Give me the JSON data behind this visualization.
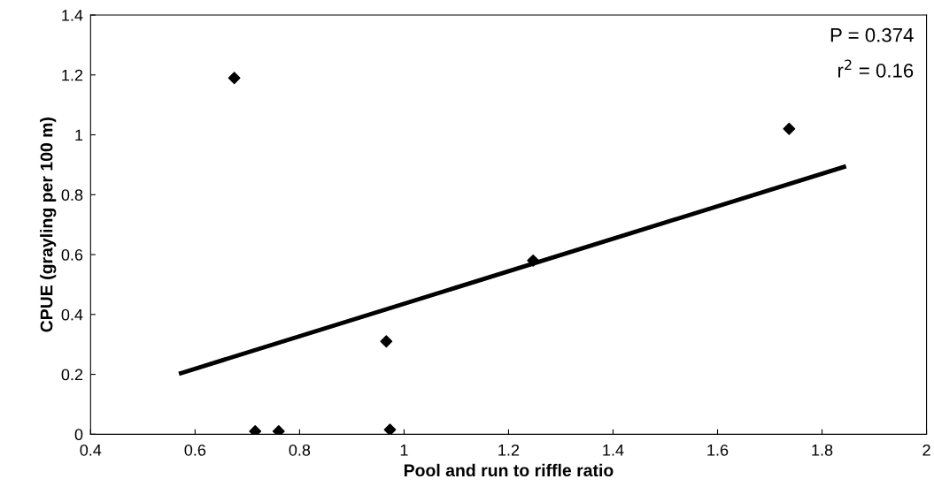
{
  "chart_data": {
    "type": "scatter",
    "xlabel": "Pool and run to riffle ratio",
    "ylabel": "CPUE (grayling per 100 m)",
    "series": [
      {
        "color": "#000000",
        "marker": "diamond",
        "x": [
          0.675,
          0.715,
          0.76,
          0.966,
          0.973,
          1.247,
          1.737
        ],
        "values": [
          1.19,
          0.01,
          0.01,
          0.31,
          0.015,
          0.58,
          1.02
        ]
      },
      {
        "type": "line",
        "color": "#000000",
        "marker": "none",
        "line_style": "solid",
        "x": [
          0.573,
          1.842
        ],
        "values": [
          0.204,
          0.893
        ]
      }
    ],
    "annotations": [
      "P = 0.374",
      "r$^{2}$ = 0.16"
    ],
    "xlim": [
      0.4,
      2
    ],
    "xticks": [
      0.4,
      0.6,
      0.8,
      1,
      1.2,
      1.4,
      1.6,
      1.8,
      2
    ],
    "ylim": [
      0,
      1.4
    ],
    "yticks": [
      0,
      0.2,
      0.4,
      0.6,
      0.8,
      1,
      1.2,
      1.4
    ],
    "grid": false,
    "legend": false
  }
}
